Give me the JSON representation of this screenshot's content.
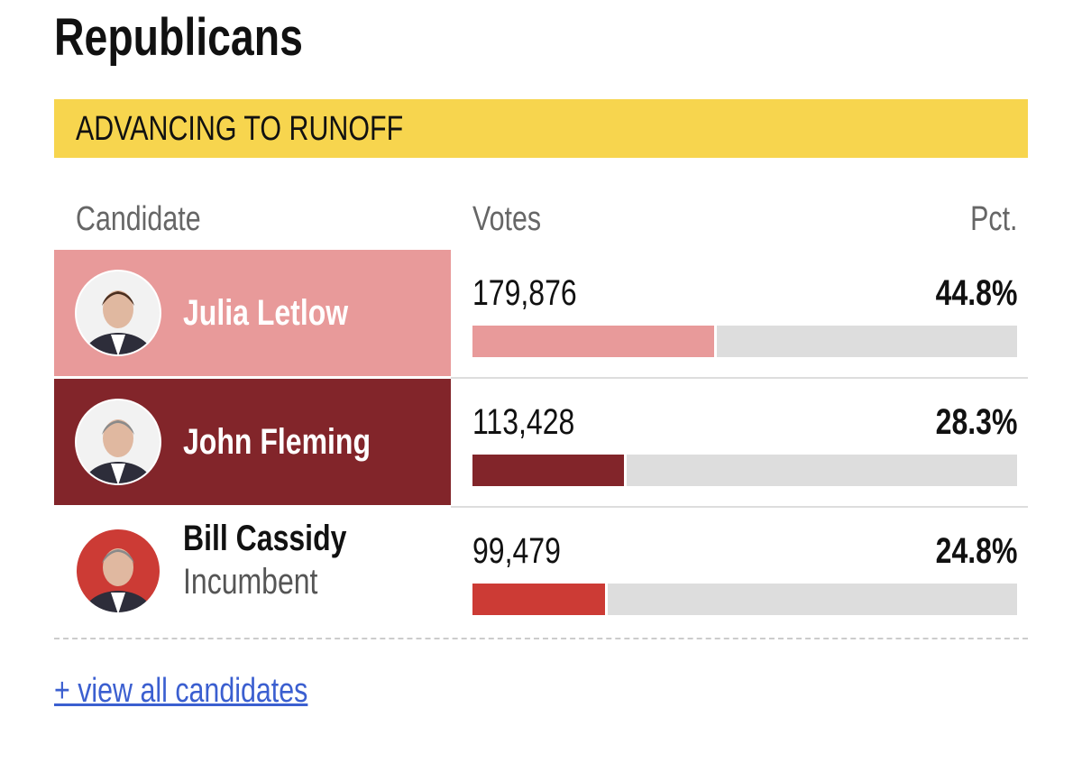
{
  "header": {
    "title": "Republicans"
  },
  "banner": {
    "text": "ADVANCING TO RUNOFF",
    "color": "#f7d54e"
  },
  "table": {
    "columns": [
      "Candidate",
      "Votes",
      "Pct."
    ],
    "xlim": [
      0,
      100
    ],
    "track_color": "#dddddd",
    "rows": [
      {
        "name": "Julia Letlow",
        "votes": "179,876",
        "pct": {
          "value": 44.8,
          "label": "44.8%"
        },
        "color": "#e89a9a",
        "highlight": true
      },
      {
        "name": "John Fleming",
        "votes": "113,428",
        "pct": {
          "value": 28.3,
          "label": "28.3%"
        },
        "color": "#82252a",
        "highlight": true
      },
      {
        "name": "Bill Cassidy",
        "note": "Incumbent",
        "votes": "99,479",
        "pct": {
          "value": 24.8,
          "label": "24.8%"
        },
        "color": "#cc3b35",
        "highlight": false
      }
    ]
  },
  "footer": {
    "link": "+ view all candidates"
  }
}
